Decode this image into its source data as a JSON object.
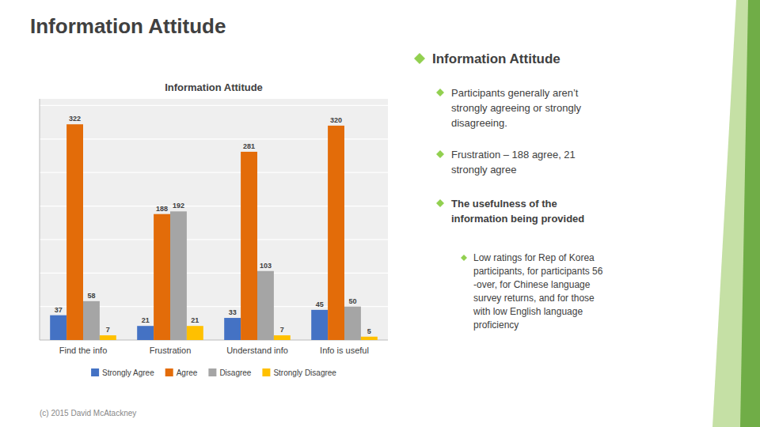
{
  "chart_data": {
    "type": "bar",
    "title": "Information Attitude",
    "categories": [
      "Find the info",
      "Frustration",
      "Understand info",
      "Info is useful"
    ],
    "series": [
      {
        "name": "Strongly Agree",
        "color": "#4472C4",
        "values": [
          37,
          21,
          33,
          45
        ]
      },
      {
        "name": "Agree",
        "color": "#E36C09",
        "values": [
          322,
          188,
          281,
          320
        ]
      },
      {
        "name": "Disagree",
        "color": "#A5A5A5",
        "values": [
          58,
          192,
          103,
          50
        ]
      },
      {
        "name": "Strongly Disagree",
        "color": "#FFC000",
        "values": [
          7,
          21,
          7,
          5
        ]
      }
    ],
    "ylim": [
      0,
      360
    ],
    "yticks": [
      50,
      100,
      150,
      200,
      250,
      300,
      350
    ],
    "grid": true,
    "data_labels": true,
    "tick_labels": "x",
    "legend": "bottom"
  },
  "slide_title": "Information Attitude",
  "footer": "(c) 2015 David McAtackney",
  "right_panel": {
    "main_bullet": "Information Attitude",
    "sub_bullets": [
      "Participants generally aren’t\nstrongly agreeing or strongly\ndisagreeing.",
      "Frustration – 188 agree, 21\nstrongly agree",
      "The usefulness of the\ninformation being provided"
    ],
    "sub_sub_bullet": "Low ratings for Rep of Korea\nparticipants, for participants 56\n-over, for Chinese language\nsurvey returns, and for those\nwith low English language\nproficiency"
  }
}
